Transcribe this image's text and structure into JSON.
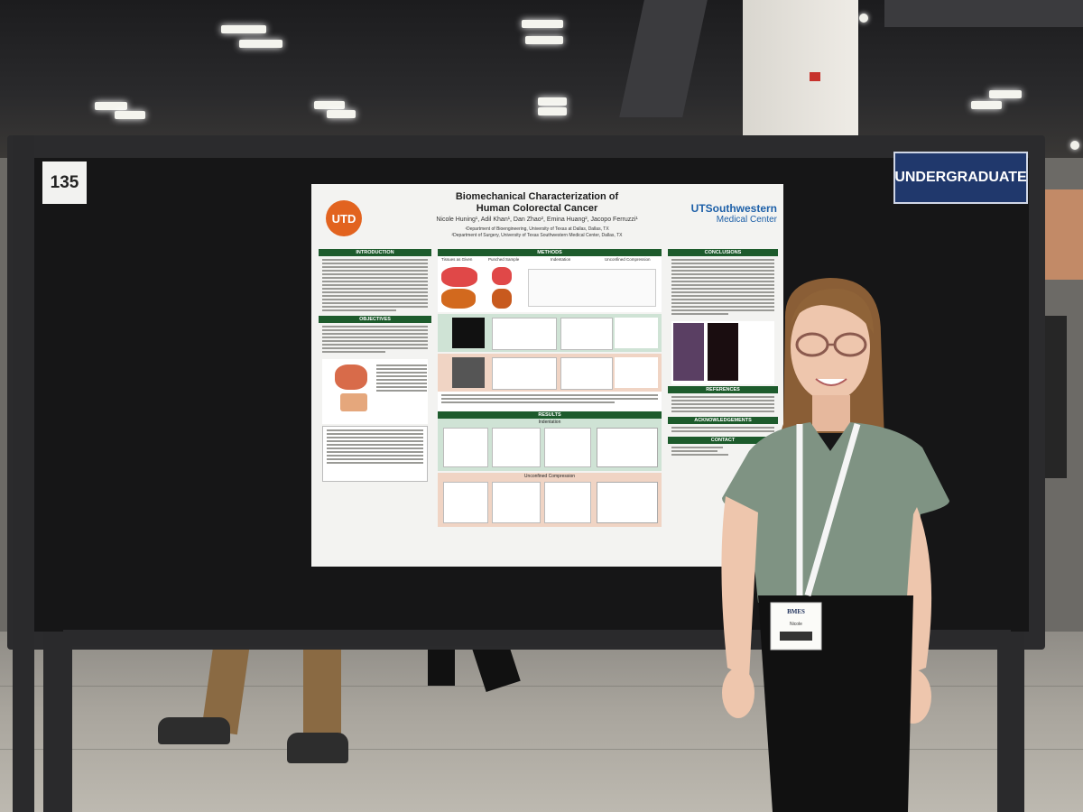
{
  "scene": {
    "board_number": "135",
    "category_label": "UNDERGRADUATE"
  },
  "poster": {
    "title_line1": "Biomechanical Characterization of",
    "title_line2": "Human Colorectal Cancer",
    "authors": "Nicole Huning¹, Adil Khan¹, Dan Zhao², Emina Huang², Jacopo Ferruzzi¹",
    "affiliation1": "¹Department of Bioengineering, University of Texas at Dallas, Dallas, TX",
    "affiliation2": "²Department of Surgery, University of Texas Southwestern Medical Center, Dallas, TX",
    "left_logo": "UTD",
    "right_logo_line1": "UTSouthwestern",
    "right_logo_line2": "Medical Center",
    "sections": {
      "introduction": "INTRODUCTION",
      "objectives": "OBJECTIVES",
      "methods": "METHODS",
      "results": "RESULTS",
      "conclusions": "CONCLUSIONS",
      "references": "REFERENCES",
      "acknowledgements": "ACKNOWLEDGEMENTS",
      "contact": "CONTACT"
    },
    "methods_labels": {
      "tissues": "Tissues as Given",
      "punched": "Punched Sample",
      "indentation": "Indentation",
      "unconfined": "Unconfined Compression"
    },
    "results_labels": {
      "indentation": "Indentation",
      "unconfined": "Unconfined Compression"
    }
  },
  "badge": {
    "event": "BMES",
    "name": "Nicole"
  },
  "colors": {
    "board": "#161617",
    "section_header_green": "#1d5b2c",
    "category_blue": "#20386c",
    "utd_orange": "#e2631f",
    "shirt": "#7f9383"
  }
}
